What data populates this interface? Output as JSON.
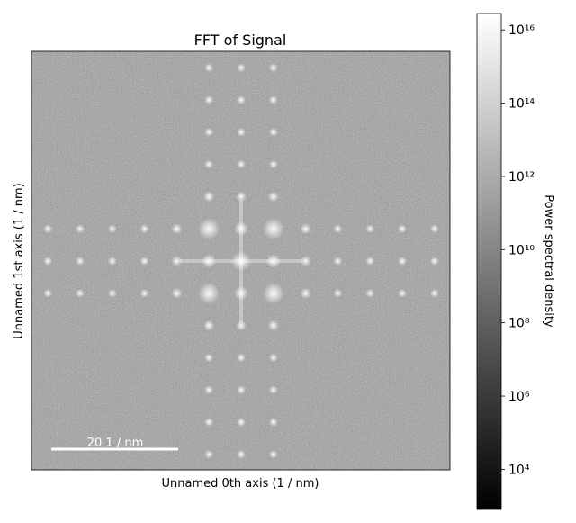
{
  "chart_data": {
    "type": "image",
    "title": "FFT of  Signal",
    "xlabel": "Unnamed 0th axis (1 / nm)",
    "ylabel": "Unnamed 1st axis (1 / nm)",
    "colormap": "gray",
    "scalebar": {
      "label": "20 1 / nm"
    },
    "colorbar": {
      "label": "Power spectral density",
      "log_scale": true,
      "clim": [
        800,
        28000000000000000
      ],
      "ticks": [
        {
          "value": 10000,
          "label": "10⁴"
        },
        {
          "value": 1000000,
          "label": "10⁶"
        },
        {
          "value": 100000000,
          "label": "10⁸"
        },
        {
          "value": 10000000000,
          "label": "10¹⁰"
        },
        {
          "value": 1000000000000,
          "label": "10¹²"
        },
        {
          "value": 100000000000000,
          "label": "10¹⁴"
        },
        {
          "value": 10000000000000000,
          "label": "10¹⁶"
        }
      ]
    }
  }
}
